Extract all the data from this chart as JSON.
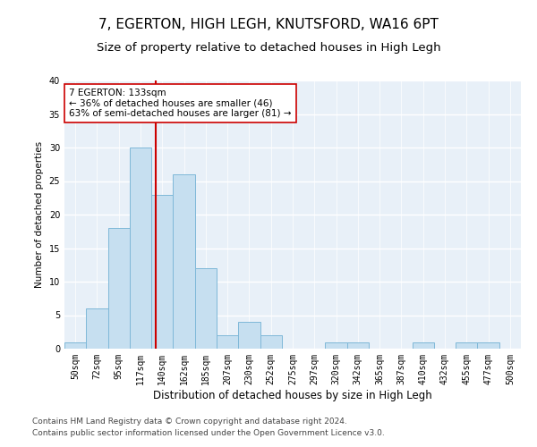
{
  "title1": "7, EGERTON, HIGH LEGH, KNUTSFORD, WA16 6PT",
  "title2": "Size of property relative to detached houses in High Legh",
  "xlabel": "Distribution of detached houses by size in High Legh",
  "ylabel": "Number of detached properties",
  "bar_labels": [
    "50sqm",
    "72sqm",
    "95sqm",
    "117sqm",
    "140sqm",
    "162sqm",
    "185sqm",
    "207sqm",
    "230sqm",
    "252sqm",
    "275sqm",
    "297sqm",
    "320sqm",
    "342sqm",
    "365sqm",
    "387sqm",
    "410sqm",
    "432sqm",
    "455sqm",
    "477sqm",
    "500sqm"
  ],
  "bar_values": [
    1,
    6,
    18,
    30,
    23,
    26,
    12,
    2,
    4,
    2,
    0,
    0,
    1,
    1,
    0,
    0,
    1,
    0,
    1,
    1,
    0
  ],
  "bar_color": "#c6dff0",
  "bar_edge_color": "#7fb8d8",
  "vline_color": "#cc0000",
  "annotation_text": "7 EGERTON: 133sqm\n← 36% of detached houses are smaller (46)\n63% of semi-detached houses are larger (81) →",
  "annotation_box_color": "#ffffff",
  "annotation_box_edge": "#cc0000",
  "ylim": [
    0,
    40
  ],
  "yticks": [
    0,
    5,
    10,
    15,
    20,
    25,
    30,
    35,
    40
  ],
  "footer1": "Contains HM Land Registry data © Crown copyright and database right 2024.",
  "footer2": "Contains public sector information licensed under the Open Government Licence v3.0.",
  "background_color": "#e8f0f8",
  "grid_color": "#ffffff",
  "title1_fontsize": 11,
  "title2_fontsize": 9.5,
  "xlabel_fontsize": 8.5,
  "ylabel_fontsize": 7.5,
  "tick_fontsize": 7,
  "annotation_fontsize": 7.5,
  "footer_fontsize": 6.5
}
